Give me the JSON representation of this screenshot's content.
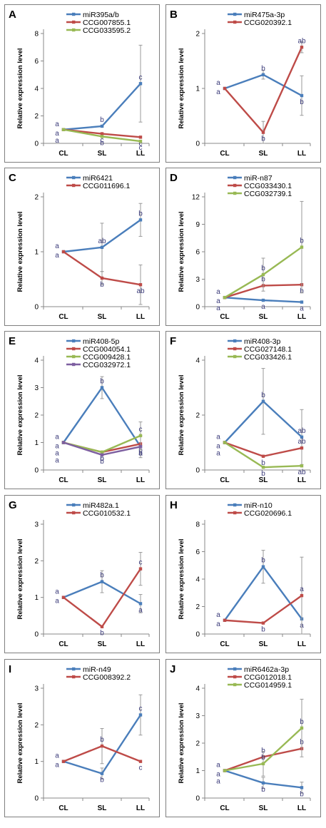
{
  "figure": {
    "y_axis_label": "Relative expression level",
    "colors": {
      "blue": "#4a7ebb",
      "red": "#be4b48",
      "green": "#98b954",
      "error": "#9a9a9a"
    }
  },
  "chart_data": [
    {
      "panel": "A",
      "type": "line",
      "categories": [
        "CL",
        "SL",
        "LL"
      ],
      "ylim": [
        0,
        8
      ],
      "yticks": [
        0,
        2,
        4,
        6,
        8
      ],
      "ylabel": "Relative expression level",
      "series": [
        {
          "name": "miR395a/b",
          "color": "blue",
          "values": [
            1.0,
            1.25,
            4.35
          ],
          "errors": [
            0,
            0.05,
            2.8
          ],
          "sig": [
            "a",
            "b",
            "c"
          ]
        },
        {
          "name": "CCG007855.1",
          "color": "red",
          "values": [
            1.0,
            0.7,
            0.45
          ],
          "errors": [
            0,
            0,
            0
          ],
          "sig": [
            "a",
            "c",
            "c"
          ]
        },
        {
          "name": "CCG033595.2",
          "color": "green",
          "values": [
            1.0,
            0.5,
            0.15
          ],
          "errors": [
            0,
            0,
            0
          ],
          "sig": [
            "a",
            "b",
            "c"
          ]
        }
      ]
    },
    {
      "panel": "B",
      "type": "line",
      "categories": [
        "CL",
        "SL",
        "LL"
      ],
      "ylim": [
        0,
        2
      ],
      "yticks": [
        0,
        1,
        2
      ],
      "ylabel": "Relative expression level",
      "series": [
        {
          "name": "miR475a-3p",
          "color": "blue",
          "values": [
            1.0,
            1.25,
            0.87
          ],
          "errors": [
            0,
            0.08,
            0.36
          ],
          "sig": [
            "a",
            "b",
            "b"
          ]
        },
        {
          "name": "CCG020392.1",
          "color": "red",
          "values": [
            1.0,
            0.2,
            1.75
          ],
          "errors": [
            0,
            0.2,
            0.1
          ],
          "sig": [
            "a",
            "b",
            "ab"
          ]
        }
      ]
    },
    {
      "panel": "C",
      "type": "line",
      "categories": [
        "CL",
        "SL",
        "LL"
      ],
      "ylim": [
        0,
        2
      ],
      "yticks": [
        0,
        1,
        2
      ],
      "ylabel": "Relative expression level",
      "series": [
        {
          "name": "miR6421",
          "color": "blue",
          "values": [
            1.0,
            1.08,
            1.58
          ],
          "errors": [
            0,
            0.44,
            0.3
          ],
          "sig": [
            "a",
            "ab",
            "b"
          ]
        },
        {
          "name": "CCG011696.1",
          "color": "red",
          "values": [
            1.0,
            0.52,
            0.4
          ],
          "errors": [
            0,
            0.12,
            0.36
          ],
          "sig": [
            "a",
            "b",
            "ab"
          ]
        }
      ]
    },
    {
      "panel": "D",
      "type": "line",
      "categories": [
        "CL",
        "SL",
        "LL"
      ],
      "ylim": [
        0,
        12
      ],
      "yticks": [
        0,
        3,
        6,
        9,
        12
      ],
      "ylabel": "Relative expression level",
      "series": [
        {
          "name": "miR-n87",
          "color": "blue",
          "values": [
            1.0,
            0.7,
            0.5
          ],
          "errors": [
            0,
            0,
            0
          ],
          "sig": [
            "a",
            "a",
            "a"
          ]
        },
        {
          "name": "CCG033430.1",
          "color": "red",
          "values": [
            1.0,
            2.3,
            2.4
          ],
          "errors": [
            0,
            0,
            0
          ],
          "sig": [
            "a",
            "b",
            "b"
          ]
        },
        {
          "name": "CCG032739.1",
          "color": "green",
          "values": [
            1.0,
            3.5,
            6.5
          ],
          "errors": [
            0,
            1.8,
            5.0
          ],
          "sig": [
            "a",
            "b",
            "b"
          ]
        }
      ]
    },
    {
      "panel": "E",
      "type": "line",
      "categories": [
        "CL",
        "SL",
        "LL"
      ],
      "ylim": [
        0,
        4
      ],
      "yticks": [
        0,
        1,
        2,
        3,
        4
      ],
      "ylabel": "Relative expression level",
      "series": [
        {
          "name": "miR408-5p",
          "color": "blue",
          "values": [
            1.0,
            3.0,
            0.85
          ],
          "errors": [
            0,
            0.4,
            0.4
          ],
          "sig": [
            "a",
            "b",
            "a"
          ]
        },
        {
          "name": "CCG004054.1",
          "color": "red",
          "values": [
            1.0,
            0.65,
            0.95
          ],
          "errors": [
            0,
            0,
            0
          ],
          "sig": [
            "a",
            "b",
            "b"
          ]
        },
        {
          "name": "CCG009428.1",
          "color": "green",
          "values": [
            1.0,
            0.65,
            1.25
          ],
          "errors": [
            0,
            0,
            0.5
          ],
          "sig": [
            "a",
            "b",
            "c"
          ]
        },
        {
          "name": "CCG032972.1",
          "color": "purple",
          "values": [
            1.0,
            0.55,
            0.85
          ],
          "errors": [
            0,
            0,
            0
          ],
          "sig": [
            "a",
            "b",
            "b"
          ]
        }
      ]
    },
    {
      "panel": "F",
      "type": "line",
      "categories": [
        "CL",
        "SL",
        "LL"
      ],
      "ylim": [
        0,
        4
      ],
      "yticks": [
        0,
        2,
        4
      ],
      "ylabel": "Relative expression level",
      "series": [
        {
          "name": "miR408-3p",
          "color": "blue",
          "values": [
            1.0,
            2.5,
            1.2
          ],
          "errors": [
            0,
            1.2,
            1.0
          ],
          "sig": [
            "a",
            "b",
            "ab"
          ]
        },
        {
          "name": "CCG027148.1",
          "color": "red",
          "values": [
            1.0,
            0.5,
            0.8
          ],
          "errors": [
            0,
            0,
            0
          ],
          "sig": [
            "a",
            "b",
            "ab"
          ]
        },
        {
          "name": "CCG033426.1",
          "color": "green",
          "values": [
            1.0,
            0.1,
            0.15
          ],
          "errors": [
            0,
            0,
            0
          ],
          "sig": [
            "a",
            "b",
            "ab"
          ]
        }
      ]
    },
    {
      "panel": "G",
      "type": "line",
      "categories": [
        "CL",
        "SL",
        "LL"
      ],
      "ylim": [
        0,
        3
      ],
      "yticks": [
        0,
        1,
        2,
        3
      ],
      "ylabel": "Relative expression level",
      "series": [
        {
          "name": "miR482a.1",
          "color": "blue",
          "values": [
            1.0,
            1.43,
            0.83
          ],
          "errors": [
            0,
            0.3,
            0.25
          ],
          "sig": [
            "a",
            "b",
            "a"
          ]
        },
        {
          "name": "CCG010532.1",
          "color": "red",
          "values": [
            1.0,
            0.2,
            1.78
          ],
          "errors": [
            0,
            0,
            0.45
          ],
          "sig": [
            "a",
            "b",
            "c"
          ]
        }
      ]
    },
    {
      "panel": "H",
      "type": "line",
      "categories": [
        "CL",
        "SL",
        "LL"
      ],
      "ylim": [
        0,
        8
      ],
      "yticks": [
        0,
        2,
        4,
        6,
        8
      ],
      "ylabel": "Relative expression level",
      "series": [
        {
          "name": "miR-n10",
          "color": "blue",
          "values": [
            1.0,
            4.9,
            1.1
          ],
          "errors": [
            0,
            1.2,
            0
          ],
          "sig": [
            "a",
            "b",
            "a"
          ]
        },
        {
          "name": "CCG020696.1",
          "color": "red",
          "values": [
            1.0,
            0.8,
            2.8
          ],
          "errors": [
            0,
            0,
            2.8
          ],
          "sig": [
            "a",
            "b",
            "a"
          ]
        }
      ]
    },
    {
      "panel": "I",
      "type": "line",
      "categories": [
        "CL",
        "SL",
        "LL"
      ],
      "ylim": [
        0,
        3
      ],
      "yticks": [
        0,
        1,
        2,
        3
      ],
      "ylabel": "Relative expression level",
      "series": [
        {
          "name": "miR-n49",
          "color": "blue",
          "values": [
            1.0,
            0.67,
            2.27
          ],
          "errors": [
            0,
            0.15,
            0.55
          ],
          "sig": [
            "a",
            "b",
            "c"
          ]
        },
        {
          "name": "CCG008392.2",
          "color": "red",
          "values": [
            1.0,
            1.42,
            1.0
          ],
          "errors": [
            0,
            0.48,
            0
          ],
          "sig": [
            "a",
            "b",
            "c"
          ]
        }
      ]
    },
    {
      "panel": "J",
      "type": "line",
      "categories": [
        "CL",
        "SL",
        "LL"
      ],
      "ylim": [
        0,
        4
      ],
      "yticks": [
        0,
        1,
        2,
        3,
        4
      ],
      "ylabel": "Relative expression level",
      "series": [
        {
          "name": "miR6462a-3p",
          "color": "blue",
          "values": [
            1.0,
            0.55,
            0.38
          ],
          "errors": [
            0,
            0.2,
            0.2
          ],
          "sig": [
            "a",
            "b",
            "b"
          ]
        },
        {
          "name": "CCG012018.1",
          "color": "red",
          "values": [
            1.0,
            1.5,
            1.8
          ],
          "errors": [
            0,
            0,
            0
          ],
          "sig": [
            "a",
            "b",
            "b"
          ]
        },
        {
          "name": "CCG014959.1",
          "color": "green",
          "values": [
            1.0,
            1.25,
            2.55
          ],
          "errors": [
            0,
            0.45,
            1.05
          ],
          "sig": [
            "a",
            "b",
            "b"
          ]
        }
      ]
    }
  ]
}
